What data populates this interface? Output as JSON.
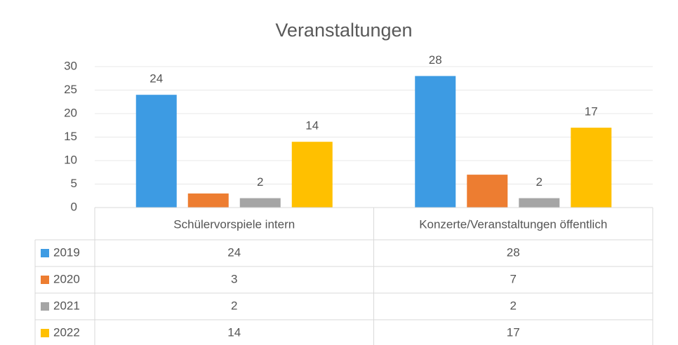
{
  "chart_data": {
    "type": "bar",
    "title": "Veranstaltungen",
    "categories": [
      "Schülervorspiele intern",
      "Konzerte/Veranstaltungen öffentlich"
    ],
    "series": [
      {
        "name": "2019",
        "color": "#3d9be3",
        "values": [
          24,
          28
        ],
        "data_labels": true
      },
      {
        "name": "2020",
        "color": "#ed7d31",
        "values": [
          3,
          7
        ],
        "data_labels": false
      },
      {
        "name": "2021",
        "color": "#a5a5a5",
        "values": [
          2,
          2
        ],
        "data_labels": true
      },
      {
        "name": "2022",
        "color": "#ffc000",
        "values": [
          14,
          17
        ],
        "data_labels": true
      }
    ],
    "ylim": [
      0,
      30
    ],
    "yticks": [
      0,
      5,
      10,
      15,
      20,
      25,
      30
    ],
    "grid": true,
    "data_table": true
  }
}
